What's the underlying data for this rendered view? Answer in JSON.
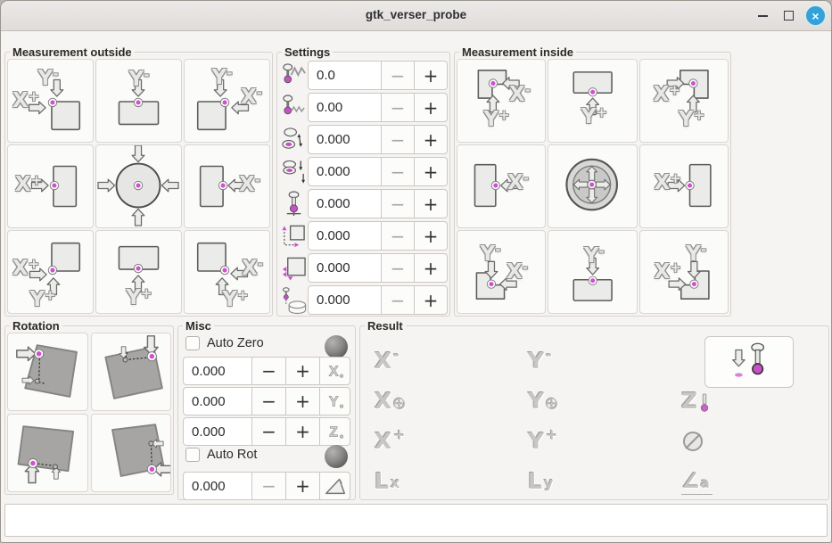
{
  "window": {
    "title": "gtk_verser_probe"
  },
  "measurement_outside": {
    "title": "Measurement outside",
    "cells": [
      {
        "name": "probe-outside-corner-yminus-xplus",
        "labels": [
          {
            "text": "Y",
            "sign": "-"
          },
          {
            "text": "X",
            "sign": "+"
          }
        ]
      },
      {
        "name": "probe-outside-edge-yminus",
        "labels": [
          {
            "text": "Y",
            "sign": "-"
          }
        ]
      },
      {
        "name": "probe-outside-corner-yminus-xminus",
        "labels": [
          {
            "text": "Y",
            "sign": "-"
          },
          {
            "text": "X",
            "sign": "-"
          }
        ]
      },
      {
        "name": "probe-outside-edge-xplus",
        "labels": [
          {
            "text": "X",
            "sign": "+"
          }
        ]
      },
      {
        "name": "probe-outside-center",
        "labels": []
      },
      {
        "name": "probe-outside-edge-xminus",
        "labels": [
          {
            "text": "X",
            "sign": "-"
          }
        ]
      },
      {
        "name": "probe-outside-corner-xplus-yplus",
        "labels": [
          {
            "text": "X",
            "sign": "+"
          },
          {
            "text": "Y",
            "sign": "+"
          }
        ]
      },
      {
        "name": "probe-outside-edge-yplus",
        "labels": [
          {
            "text": "Y",
            "sign": "+"
          }
        ]
      },
      {
        "name": "probe-outside-corner-xminus-yplus",
        "labels": [
          {
            "text": "X",
            "sign": "-"
          },
          {
            "text": "Y",
            "sign": "+"
          }
        ]
      }
    ]
  },
  "settings": {
    "title": "Settings",
    "minus": "−",
    "plus": "+",
    "rows": [
      {
        "icon": "probe-fast-feed-icon",
        "value": "0.0"
      },
      {
        "icon": "probe-slow-feed-icon",
        "value": "0.00"
      },
      {
        "icon": "xy-clearance-icon",
        "value": "0.000"
      },
      {
        "icon": "z-clearance-icon",
        "value": "0.000"
      },
      {
        "icon": "probe-length-icon",
        "value": "0.000"
      },
      {
        "icon": "edge-length-icon",
        "value": "0.000"
      },
      {
        "icon": "probe-offset-icon",
        "value": "0.000"
      },
      {
        "icon": "workpiece-height-icon",
        "value": "0.000"
      }
    ]
  },
  "measurement_inside": {
    "title": "Measurement inside",
    "cells": [
      {
        "name": "probe-inside-corner-xminus-yplus",
        "labels": [
          {
            "text": "X",
            "sign": "-"
          },
          {
            "text": "Y",
            "sign": "+"
          }
        ]
      },
      {
        "name": "probe-inside-edge-yplus",
        "labels": [
          {
            "text": "Y",
            "sign": "+"
          }
        ]
      },
      {
        "name": "probe-inside-corner-xplus-yplus",
        "labels": [
          {
            "text": "X",
            "sign": "+"
          },
          {
            "text": "Y",
            "sign": "+"
          }
        ]
      },
      {
        "name": "probe-inside-edge-xminus",
        "labels": [
          {
            "text": "X",
            "sign": "-"
          }
        ]
      },
      {
        "name": "probe-inside-center",
        "labels": []
      },
      {
        "name": "probe-inside-edge-xplus",
        "labels": [
          {
            "text": "X",
            "sign": "+"
          }
        ]
      },
      {
        "name": "probe-inside-corner-yminus-xminus",
        "labels": [
          {
            "text": "Y",
            "sign": "-"
          },
          {
            "text": "X",
            "sign": "-"
          }
        ]
      },
      {
        "name": "probe-inside-edge-yminus",
        "labels": [
          {
            "text": "Y",
            "sign": "-"
          }
        ]
      },
      {
        "name": "probe-inside-corner-yminus-xplus",
        "labels": [
          {
            "text": "Y",
            "sign": "-"
          },
          {
            "text": "X",
            "sign": "+"
          }
        ]
      }
    ]
  },
  "rotation": {
    "title": "Rotation",
    "cells": [
      {
        "name": "rotate-probe-left-edge"
      },
      {
        "name": "rotate-probe-top-edge"
      },
      {
        "name": "rotate-probe-bottom-edge"
      },
      {
        "name": "rotate-probe-right-edge"
      }
    ]
  },
  "misc": {
    "title": "Misc",
    "minus": "−",
    "plus": "+",
    "auto_zero": {
      "label": "Auto Zero",
      "checked": false
    },
    "auto_rot": {
      "label": "Auto Rot",
      "checked": false
    },
    "axis_rows": [
      {
        "value": "0.000",
        "axis": "X",
        "minus_enabled": true
      },
      {
        "value": "0.000",
        "axis": "Y",
        "minus_enabled": true
      },
      {
        "value": "0.000",
        "axis": "Z",
        "minus_enabled": true
      }
    ],
    "angle_row": {
      "value": "0.000",
      "minus_enabled": false
    }
  },
  "result": {
    "title": "Result",
    "items": [
      {
        "name": "result-x-minus",
        "letter": "X",
        "sign": "-",
        "style": "sup"
      },
      {
        "name": "result-y-minus",
        "letter": "Y",
        "sign": "-",
        "style": "sup"
      },
      {
        "name": "result-x-center",
        "letter": "X",
        "sign": "⊕",
        "style": "circ"
      },
      {
        "name": "result-y-center",
        "letter": "Y",
        "sign": "⊕",
        "style": "circ"
      },
      {
        "name": "result-z",
        "letter": "Z",
        "sign": "",
        "style": "probe"
      },
      {
        "name": "result-x-plus",
        "letter": "X",
        "sign": "+",
        "style": "sup"
      },
      {
        "name": "result-y-plus",
        "letter": "Y",
        "sign": "+",
        "style": "sup"
      },
      {
        "name": "result-diameter",
        "letter": "",
        "sign": "",
        "style": "diameter"
      },
      {
        "name": "result-length-x",
        "letter": "L",
        "sign": "x",
        "style": "sub"
      },
      {
        "name": "result-length-y",
        "letter": "L",
        "sign": "y",
        "style": "sub"
      },
      {
        "name": "result-angle",
        "letter": "∠",
        "sign": "a",
        "style": "angle"
      }
    ]
  },
  "console": {
    "text": ""
  }
}
